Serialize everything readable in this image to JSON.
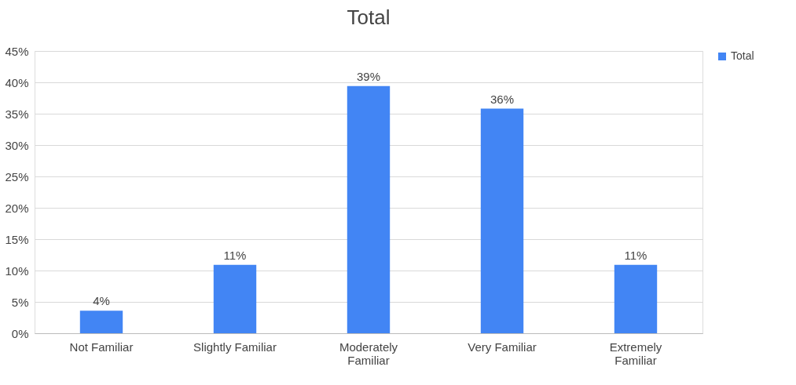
{
  "chart_data": {
    "type": "bar",
    "title": "Total",
    "categories": [
      "Not Familiar",
      "Slightly Familiar",
      "Moderately Familiar",
      "Very Familiar",
      "Extremely Familiar"
    ],
    "series": [
      {
        "name": "Total",
        "color": "#4285f4",
        "values": [
          3.6,
          10.9,
          39.4,
          35.8,
          10.9
        ],
        "value_labels": [
          "4%",
          "11%",
          "39%",
          "36%",
          "11%"
        ]
      }
    ],
    "ylim": [
      0,
      45
    ],
    "yticks": [
      {
        "value": 0,
        "label": "0%"
      },
      {
        "value": 5,
        "label": "5%"
      },
      {
        "value": 10,
        "label": "10%"
      },
      {
        "value": 15,
        "label": "15%"
      },
      {
        "value": 20,
        "label": "20%"
      },
      {
        "value": 25,
        "label": "25%"
      },
      {
        "value": 30,
        "label": "30%"
      },
      {
        "value": 35,
        "label": "35%"
      },
      {
        "value": 40,
        "label": "40%"
      },
      {
        "value": 45,
        "label": "45%"
      }
    ],
    "grid": "y",
    "legend": "right"
  }
}
